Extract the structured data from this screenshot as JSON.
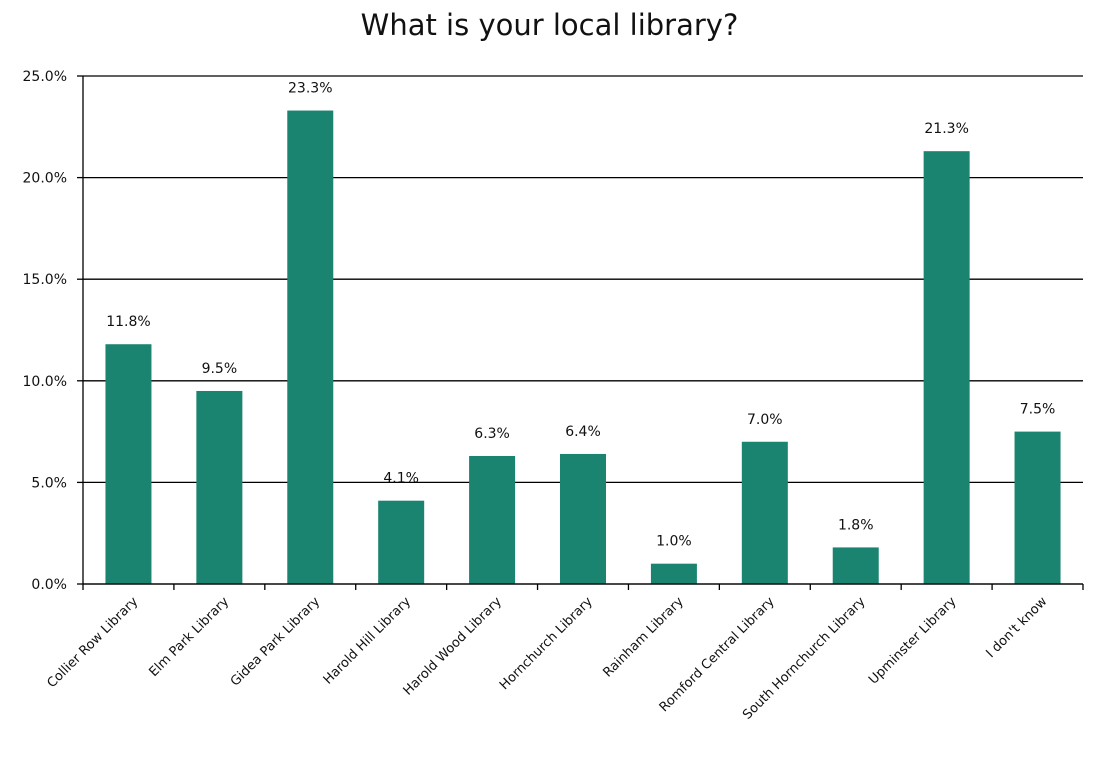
{
  "chart_data": {
    "type": "bar",
    "title": "What is your local library?",
    "categories": [
      "Collier Row Library",
      "Elm Park Library",
      "Gidea Park Library",
      "Harold Hill Library",
      "Harold Wood Library",
      "Hornchurch Library",
      "Rainham Library",
      "Romford Central Library",
      "South Hornchurch Library",
      "Upminster Library",
      "I don't know"
    ],
    "values": [
      11.8,
      9.5,
      23.3,
      4.1,
      6.3,
      6.4,
      1.0,
      7.0,
      1.8,
      21.3,
      7.5
    ],
    "data_labels": [
      "11.8%",
      "9.5%",
      "23.3%",
      "4.1%",
      "6.3%",
      "6.4%",
      "1.0%",
      "7.0%",
      "1.8%",
      "21.3%",
      "7.5%"
    ],
    "y_ticks": [
      0,
      5,
      10,
      15,
      20,
      25
    ],
    "y_tick_labels": [
      "0.0%",
      "5.0%",
      "10.0%",
      "15.0%",
      "20.0%",
      "25.0%"
    ],
    "ylim": [
      0,
      25
    ],
    "xlabel": "",
    "ylabel": "",
    "grid": true,
    "legend": "none",
    "bar_color": "#1a8470"
  }
}
